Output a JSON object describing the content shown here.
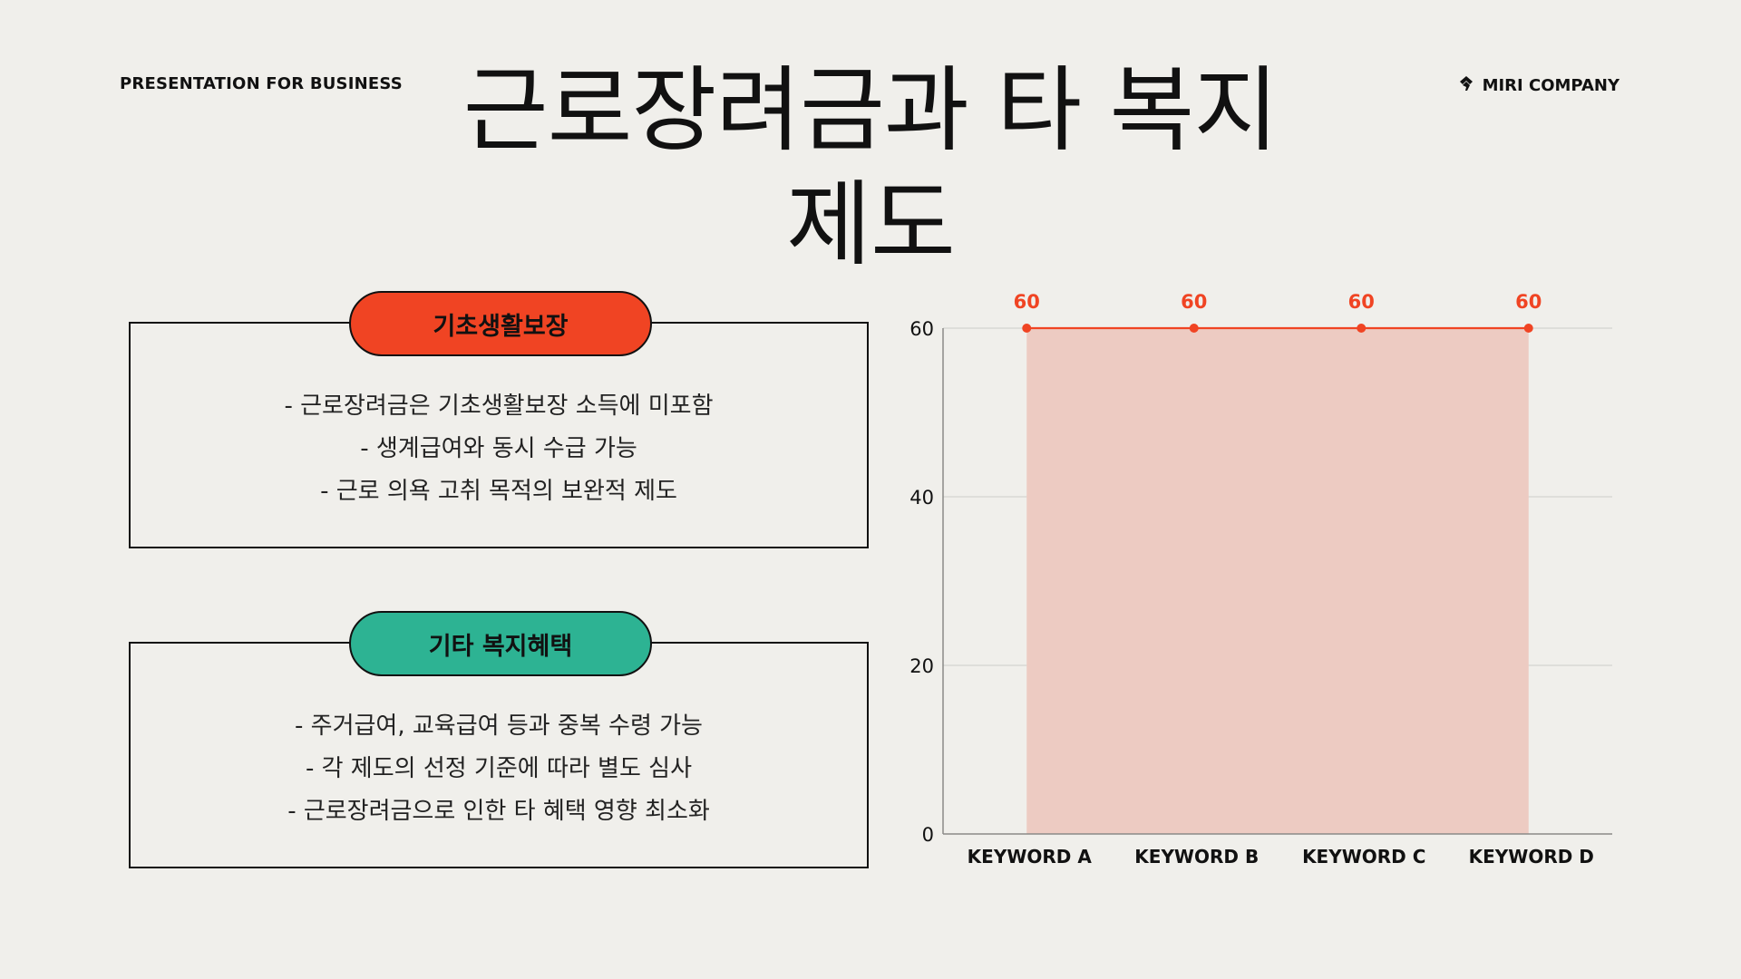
{
  "header": {
    "left_label": "PRESENTATION  FOR BUSINESS",
    "brand": "MIRI COMPANY",
    "brand_icon": "miri-logo-icon"
  },
  "title": "근로장려금과 타 복지제도",
  "panels": [
    {
      "heading": "기초생활보장",
      "color": "#f04423",
      "lines": [
        "- 근로장려금은 기초생활보장 소득에 미포함",
        "- 생계급여와 동시 수급 가능",
        "- 근로 의욕 고취 목적의 보완적 제도"
      ]
    },
    {
      "heading": "기타 복지혜택",
      "color": "#2db393",
      "lines": [
        "- 주거급여, 교육급여 등과 중복 수령 가능",
        "- 각 제도의 선정 기준에 따라 별도 심사",
        "- 근로장려금으로 인한 타 혜택 영향 최소화"
      ]
    }
  ],
  "chart_data": {
    "type": "area",
    "categories": [
      "KEYWORD A",
      "KEYWORD B",
      "KEYWORD C",
      "KEYWORD D"
    ],
    "values": [
      60,
      60,
      60,
      60
    ],
    "data_labels": [
      "60",
      "60",
      "60",
      "60"
    ],
    "yticks": [
      0,
      20,
      40,
      60
    ],
    "ylim": [
      0,
      60
    ],
    "grid": true,
    "line_color": "#f04423",
    "fill_color": "#edcbc2",
    "title": "",
    "xlabel": "",
    "ylabel": ""
  }
}
